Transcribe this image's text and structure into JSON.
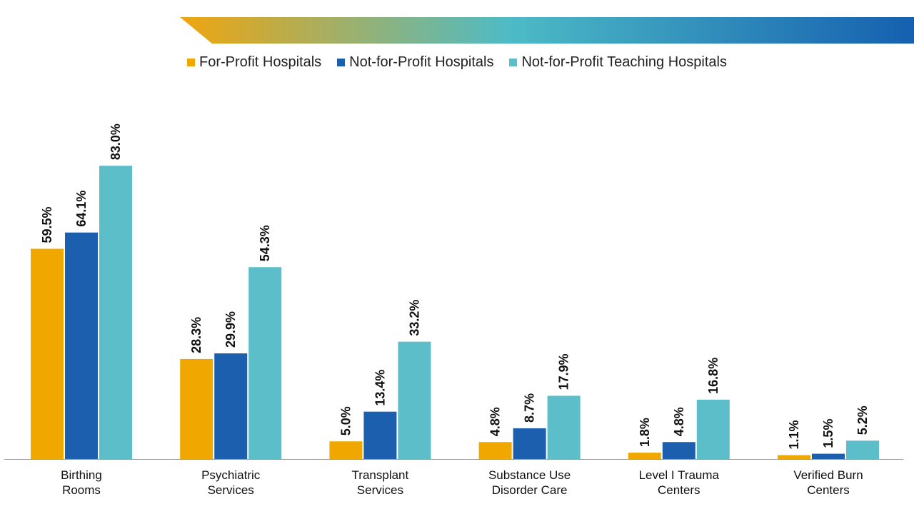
{
  "colors": {
    "banner_start": "#F0A50F",
    "banner_mid": "#4DBBC6",
    "banner_end": "#1560B0"
  },
  "chart_data": {
    "type": "bar",
    "title": "",
    "xlabel": "",
    "ylabel": "",
    "ylim": [
      0,
      100
    ],
    "grid": false,
    "legend_position": "top-center",
    "categories": [
      [
        "Birthing",
        "Rooms"
      ],
      [
        "Psychiatric",
        "Services"
      ],
      [
        "Transplant",
        "Services"
      ],
      [
        "Substance Use",
        "Disorder Care"
      ],
      [
        "Level I Trauma",
        "Centers"
      ],
      [
        "Verified Burn",
        "Centers"
      ]
    ],
    "series": [
      {
        "name": "For-Profit Hospitals",
        "color": "#F0A800",
        "values": [
          59.5,
          28.3,
          5.0,
          4.8,
          1.8,
          1.1
        ],
        "labels": [
          "59.5%",
          "28.3%",
          "5.0%",
          "4.8%",
          "1.8%",
          "1.1%"
        ]
      },
      {
        "name": "Not-for-Profit Hospitals",
        "color": "#1C5FAE",
        "values": [
          64.1,
          29.9,
          13.4,
          8.7,
          4.8,
          1.5
        ],
        "labels": [
          "64.1%",
          "29.9%",
          "13.4%",
          "8.7%",
          "4.8%",
          "1.5%"
        ]
      },
      {
        "name": "Not-for-Profit Teaching Hospitals",
        "color": "#5BBEC9",
        "values": [
          83.0,
          54.3,
          33.2,
          17.9,
          16.8,
          5.2
        ],
        "labels": [
          "83.0%",
          "54.3%",
          "33.2%",
          "17.9%",
          "16.8%",
          "5.2%"
        ]
      }
    ]
  }
}
